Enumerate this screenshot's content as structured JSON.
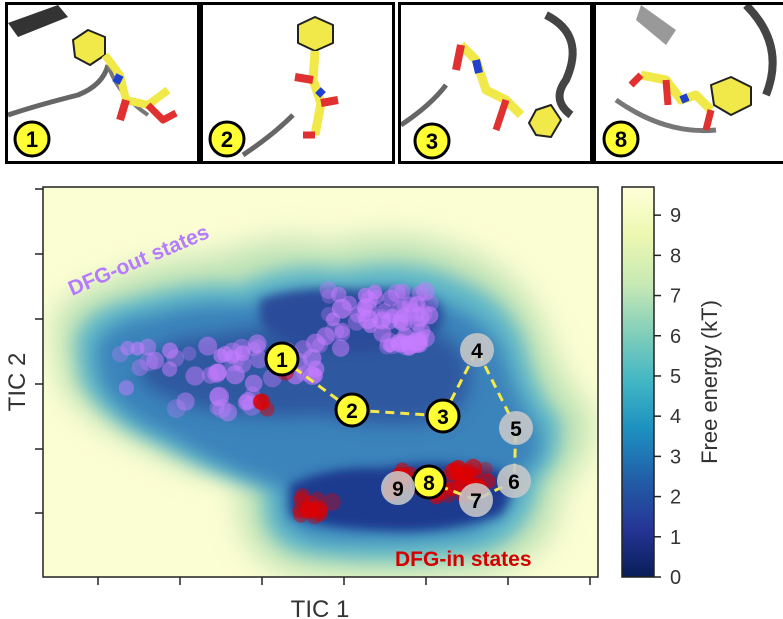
{
  "panels": [
    {
      "label": "1"
    },
    {
      "label": "2"
    },
    {
      "label": "3"
    },
    {
      "label": "8"
    }
  ],
  "chart_data": {
    "type": "heatmap",
    "title": "",
    "xlabel": "TIC 1",
    "ylabel": "TIC 2",
    "colorbar": {
      "label": "Free energy (kT)",
      "range": [
        0,
        9.7
      ],
      "ticks": [
        0,
        1,
        2,
        3,
        4,
        5,
        6,
        7,
        8,
        9
      ],
      "colormap": "YlGnBu"
    },
    "x_ticks_labeled": false,
    "y_ticks_labeled": false,
    "annotations": [
      {
        "text": "DFG-out states",
        "color": "#b57bff"
      },
      {
        "text": "DFG-in states",
        "color": "#d40000"
      }
    ],
    "states": [
      {
        "label": "1",
        "highlight": true
      },
      {
        "label": "2",
        "highlight": true
      },
      {
        "label": "3",
        "highlight": true
      },
      {
        "label": "4",
        "highlight": false
      },
      {
        "label": "5",
        "highlight": false
      },
      {
        "label": "6",
        "highlight": false
      },
      {
        "label": "7",
        "highlight": false
      },
      {
        "label": "8",
        "highlight": true
      },
      {
        "label": "9",
        "highlight": false
      }
    ],
    "path": [
      "1",
      "2",
      "3",
      "4",
      "5",
      "6",
      "7",
      "8"
    ],
    "colors": {
      "path": "#f5e84a",
      "highlight_fill": "#ffff33",
      "state_fill": "#c8c8c8",
      "dfg_out_points": "#c77dff",
      "dfg_in_points": "#e00000"
    }
  }
}
